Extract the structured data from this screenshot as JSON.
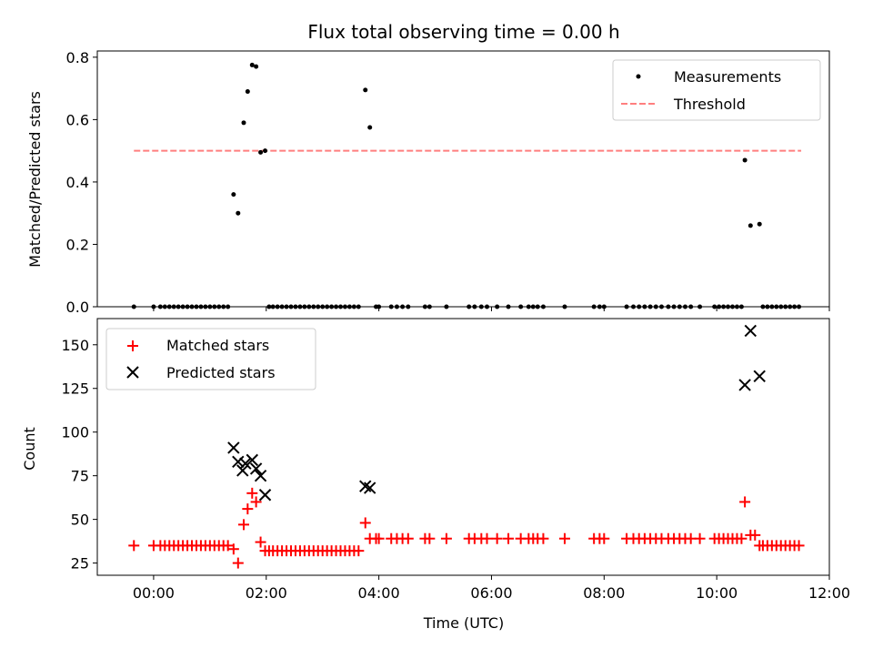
{
  "colors": {
    "measurements": "#000000",
    "threshold": "#ff7f7f",
    "matched": "#ff0000",
    "predicted": "#000000"
  },
  "chart_data": {
    "title": "Flux total observing time = 0.00 h",
    "x_axis": {
      "label": "Time (UTC)",
      "unit": "hours",
      "lim": [
        -1.0,
        12.0
      ],
      "tick_values": [
        0,
        2,
        4,
        6,
        8,
        10,
        12
      ],
      "tick_labels": [
        "00:00",
        "02:00",
        "04:00",
        "06:00",
        "08:00",
        "10:00",
        "12:00"
      ]
    },
    "top": {
      "type": "scatter",
      "ylabel": "Matched/Predicted stars",
      "ylim": [
        0,
        0.82
      ],
      "yticks": [
        0.0,
        0.2,
        0.4,
        0.6,
        0.8
      ],
      "ytick_labels": [
        "0.0",
        "0.2",
        "0.4",
        "0.6",
        "0.8"
      ],
      "legend": {
        "position": "upper right",
        "items": [
          "Measurements",
          "Threshold"
        ]
      },
      "threshold": {
        "name": "Threshold",
        "value": 0.5,
        "x_start": -0.35,
        "x_end": 11.5,
        "style": "dashed"
      },
      "measurements": {
        "name": "Measurements",
        "points": [
          [
            -0.35,
            0
          ],
          [
            0.0,
            0
          ],
          [
            0.12,
            0
          ],
          [
            0.2,
            0
          ],
          [
            0.28,
            0
          ],
          [
            0.36,
            0
          ],
          [
            0.44,
            0
          ],
          [
            0.52,
            0
          ],
          [
            0.6,
            0
          ],
          [
            0.68,
            0
          ],
          [
            0.76,
            0
          ],
          [
            0.84,
            0
          ],
          [
            0.92,
            0
          ],
          [
            1.0,
            0
          ],
          [
            1.08,
            0
          ],
          [
            1.16,
            0
          ],
          [
            1.24,
            0
          ],
          [
            1.32,
            0
          ],
          [
            1.42,
            0.36
          ],
          [
            1.5,
            0.3
          ],
          [
            1.6,
            0.59
          ],
          [
            1.67,
            0.69
          ],
          [
            1.75,
            0.775
          ],
          [
            1.82,
            0.77
          ],
          [
            1.9,
            0.495
          ],
          [
            1.98,
            0.5
          ],
          [
            2.05,
            0
          ],
          [
            2.12,
            0
          ],
          [
            2.2,
            0
          ],
          [
            2.28,
            0
          ],
          [
            2.36,
            0
          ],
          [
            2.44,
            0
          ],
          [
            2.52,
            0
          ],
          [
            2.6,
            0
          ],
          [
            2.68,
            0
          ],
          [
            2.76,
            0
          ],
          [
            2.84,
            0
          ],
          [
            2.92,
            0
          ],
          [
            3.0,
            0
          ],
          [
            3.08,
            0
          ],
          [
            3.16,
            0
          ],
          [
            3.24,
            0
          ],
          [
            3.32,
            0
          ],
          [
            3.4,
            0
          ],
          [
            3.48,
            0
          ],
          [
            3.56,
            0
          ],
          [
            3.64,
            0
          ],
          [
            3.76,
            0.695
          ],
          [
            3.84,
            0.575
          ],
          [
            3.95,
            0
          ],
          [
            4.0,
            0
          ],
          [
            4.22,
            0
          ],
          [
            4.32,
            0
          ],
          [
            4.42,
            0
          ],
          [
            4.52,
            0
          ],
          [
            4.82,
            0
          ],
          [
            4.9,
            0
          ],
          [
            5.2,
            0
          ],
          [
            5.6,
            0
          ],
          [
            5.7,
            0
          ],
          [
            5.82,
            0
          ],
          [
            5.92,
            0
          ],
          [
            6.1,
            0
          ],
          [
            6.3,
            0
          ],
          [
            6.52,
            0
          ],
          [
            6.66,
            0
          ],
          [
            6.74,
            0
          ],
          [
            6.82,
            0
          ],
          [
            6.92,
            0
          ],
          [
            7.3,
            0
          ],
          [
            7.82,
            0
          ],
          [
            7.92,
            0
          ],
          [
            8.0,
            0
          ],
          [
            8.4,
            0
          ],
          [
            8.52,
            0
          ],
          [
            8.62,
            0
          ],
          [
            8.72,
            0
          ],
          [
            8.82,
            0
          ],
          [
            8.92,
            0
          ],
          [
            9.02,
            0
          ],
          [
            9.14,
            0
          ],
          [
            9.24,
            0
          ],
          [
            9.34,
            0
          ],
          [
            9.44,
            0
          ],
          [
            9.54,
            0
          ],
          [
            9.7,
            0
          ],
          [
            9.96,
            0
          ],
          [
            10.04,
            0
          ],
          [
            10.12,
            0
          ],
          [
            10.2,
            0
          ],
          [
            10.28,
            0
          ],
          [
            10.36,
            0
          ],
          [
            10.44,
            0
          ],
          [
            10.5,
            0.47
          ],
          [
            10.6,
            0.26
          ],
          [
            10.76,
            0.265
          ],
          [
            10.82,
            0
          ],
          [
            10.9,
            0
          ],
          [
            10.98,
            0
          ],
          [
            11.06,
            0
          ],
          [
            11.14,
            0
          ],
          [
            11.22,
            0
          ],
          [
            11.3,
            0
          ],
          [
            11.38,
            0
          ],
          [
            11.46,
            0
          ]
        ]
      }
    },
    "bottom": {
      "type": "scatter",
      "ylabel": "Count",
      "ylim": [
        18,
        165
      ],
      "yticks": [
        25,
        50,
        75,
        100,
        125,
        150
      ],
      "ytick_labels": [
        "25",
        "50",
        "75",
        "100",
        "125",
        "150"
      ],
      "legend": {
        "position": "upper left",
        "items": [
          "Matched stars",
          "Predicted stars"
        ]
      },
      "matched": {
        "name": "Matched stars",
        "points": [
          [
            -0.35,
            35
          ],
          [
            0.0,
            35
          ],
          [
            0.12,
            35
          ],
          [
            0.2,
            35
          ],
          [
            0.28,
            35
          ],
          [
            0.36,
            35
          ],
          [
            0.44,
            35
          ],
          [
            0.52,
            35
          ],
          [
            0.6,
            35
          ],
          [
            0.68,
            35
          ],
          [
            0.76,
            35
          ],
          [
            0.84,
            35
          ],
          [
            0.92,
            35
          ],
          [
            1.0,
            35
          ],
          [
            1.08,
            35
          ],
          [
            1.16,
            35
          ],
          [
            1.24,
            35
          ],
          [
            1.32,
            35
          ],
          [
            1.42,
            33
          ],
          [
            1.5,
            25
          ],
          [
            1.6,
            47
          ],
          [
            1.67,
            56
          ],
          [
            1.75,
            65
          ],
          [
            1.82,
            60
          ],
          [
            1.9,
            37
          ],
          [
            1.98,
            32
          ],
          [
            2.05,
            32
          ],
          [
            2.12,
            32
          ],
          [
            2.2,
            32
          ],
          [
            2.28,
            32
          ],
          [
            2.36,
            32
          ],
          [
            2.44,
            32
          ],
          [
            2.52,
            32
          ],
          [
            2.6,
            32
          ],
          [
            2.68,
            32
          ],
          [
            2.76,
            32
          ],
          [
            2.84,
            32
          ],
          [
            2.92,
            32
          ],
          [
            3.0,
            32
          ],
          [
            3.08,
            32
          ],
          [
            3.16,
            32
          ],
          [
            3.24,
            32
          ],
          [
            3.32,
            32
          ],
          [
            3.4,
            32
          ],
          [
            3.48,
            32
          ],
          [
            3.56,
            32
          ],
          [
            3.64,
            32
          ],
          [
            3.76,
            48
          ],
          [
            3.84,
            39
          ],
          [
            3.95,
            39
          ],
          [
            4.0,
            39
          ],
          [
            4.22,
            39
          ],
          [
            4.32,
            39
          ],
          [
            4.42,
            39
          ],
          [
            4.52,
            39
          ],
          [
            4.82,
            39
          ],
          [
            4.9,
            39
          ],
          [
            5.2,
            39
          ],
          [
            5.6,
            39
          ],
          [
            5.7,
            39
          ],
          [
            5.82,
            39
          ],
          [
            5.92,
            39
          ],
          [
            6.1,
            39
          ],
          [
            6.3,
            39
          ],
          [
            6.52,
            39
          ],
          [
            6.66,
            39
          ],
          [
            6.74,
            39
          ],
          [
            6.82,
            39
          ],
          [
            6.92,
            39
          ],
          [
            7.3,
            39
          ],
          [
            7.82,
            39
          ],
          [
            7.92,
            39
          ],
          [
            8.0,
            39
          ],
          [
            8.4,
            39
          ],
          [
            8.52,
            39
          ],
          [
            8.62,
            39
          ],
          [
            8.72,
            39
          ],
          [
            8.82,
            39
          ],
          [
            8.92,
            39
          ],
          [
            9.02,
            39
          ],
          [
            9.14,
            39
          ],
          [
            9.24,
            39
          ],
          [
            9.34,
            39
          ],
          [
            9.44,
            39
          ],
          [
            9.54,
            39
          ],
          [
            9.7,
            39
          ],
          [
            9.96,
            39
          ],
          [
            10.04,
            39
          ],
          [
            10.12,
            39
          ],
          [
            10.2,
            39
          ],
          [
            10.28,
            39
          ],
          [
            10.36,
            39
          ],
          [
            10.44,
            39
          ],
          [
            10.5,
            60
          ],
          [
            10.6,
            41
          ],
          [
            10.68,
            41
          ],
          [
            10.76,
            35
          ],
          [
            10.82,
            35
          ],
          [
            10.9,
            35
          ],
          [
            10.98,
            35
          ],
          [
            11.06,
            35
          ],
          [
            11.14,
            35
          ],
          [
            11.22,
            35
          ],
          [
            11.3,
            35
          ],
          [
            11.38,
            35
          ],
          [
            11.46,
            35
          ]
        ]
      },
      "predicted": {
        "name": "Predicted stars",
        "points": [
          [
            1.42,
            91
          ],
          [
            1.5,
            83
          ],
          [
            1.58,
            78
          ],
          [
            1.63,
            82
          ],
          [
            1.75,
            84
          ],
          [
            1.82,
            79
          ],
          [
            1.9,
            75
          ],
          [
            1.98,
            64
          ],
          [
            3.76,
            69
          ],
          [
            3.84,
            68
          ],
          [
            10.5,
            127
          ],
          [
            10.6,
            158
          ],
          [
            10.76,
            132
          ]
        ]
      }
    }
  }
}
